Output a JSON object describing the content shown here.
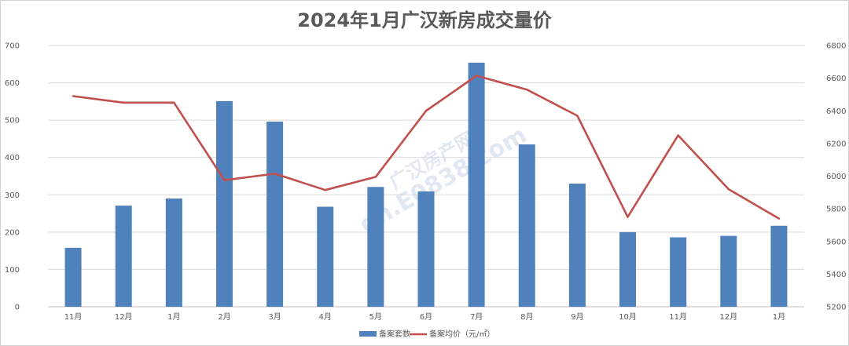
{
  "chart_data": {
    "type": "bar",
    "title": "2024年1月广汉新房成交量价",
    "categories": [
      "11月",
      "12月",
      "1月",
      "2月",
      "3月",
      "4月",
      "5月",
      "6月",
      "7月",
      "8月",
      "9月",
      "10月",
      "11月",
      "12月",
      "1月"
    ],
    "series": [
      {
        "name": "备案套数",
        "type": "bar",
        "axis": "left",
        "color": "#4f81bd",
        "values": [
          158,
          271,
          290,
          551,
          496,
          268,
          321,
          309,
          654,
          435,
          330,
          200,
          186,
          190,
          217
        ]
      },
      {
        "name": "备案均价（元/㎡）",
        "type": "line",
        "axis": "right",
        "color": "#c0504d",
        "values": [
          6490,
          6450,
          6450,
          5975,
          6015,
          5915,
          5995,
          6400,
          6615,
          6530,
          6370,
          5750,
          6250,
          5920,
          5740
        ]
      }
    ],
    "y_left": {
      "min": 0,
      "max": 700,
      "step": 100
    },
    "y_right": {
      "min": 5200,
      "max": 6800,
      "step": 200
    },
    "grid": true,
    "legend_position": "bottom"
  },
  "watermark": {
    "line1": "广汉房产网",
    "line2": "gh.E0838.com"
  }
}
